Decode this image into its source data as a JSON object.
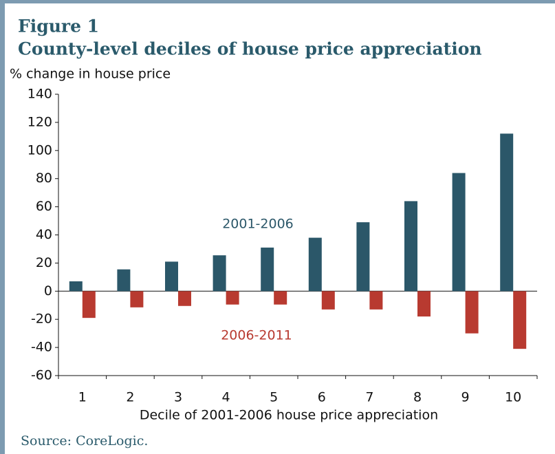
{
  "chart_data": {
    "type": "bar",
    "title": "Figure 1",
    "subtitle": "County-level deciles of house price appreciation",
    "ylabel": "% change in house price",
    "xlabel": "Decile of 2001-2006 house price appreciation",
    "source": "Source: CoreLogic.",
    "categories": [
      "1",
      "2",
      "3",
      "4",
      "5",
      "6",
      "7",
      "8",
      "9",
      "10"
    ],
    "series": [
      {
        "name": "2001-2006",
        "color": "#2b5769",
        "values": [
          7,
          15.5,
          21,
          25.5,
          31,
          38,
          49,
          64,
          84,
          112
        ]
      },
      {
        "name": "2006-2011",
        "color": "#b83a30",
        "values": [
          -19,
          -11.5,
          -10.5,
          -9.5,
          -9.5,
          -13,
          -13,
          -18,
          -30,
          -41
        ]
      }
    ],
    "ylim": [
      -60,
      140
    ],
    "yticks": [
      -60,
      -40,
      -20,
      0,
      20,
      40,
      60,
      80,
      100,
      120,
      140
    ]
  }
}
